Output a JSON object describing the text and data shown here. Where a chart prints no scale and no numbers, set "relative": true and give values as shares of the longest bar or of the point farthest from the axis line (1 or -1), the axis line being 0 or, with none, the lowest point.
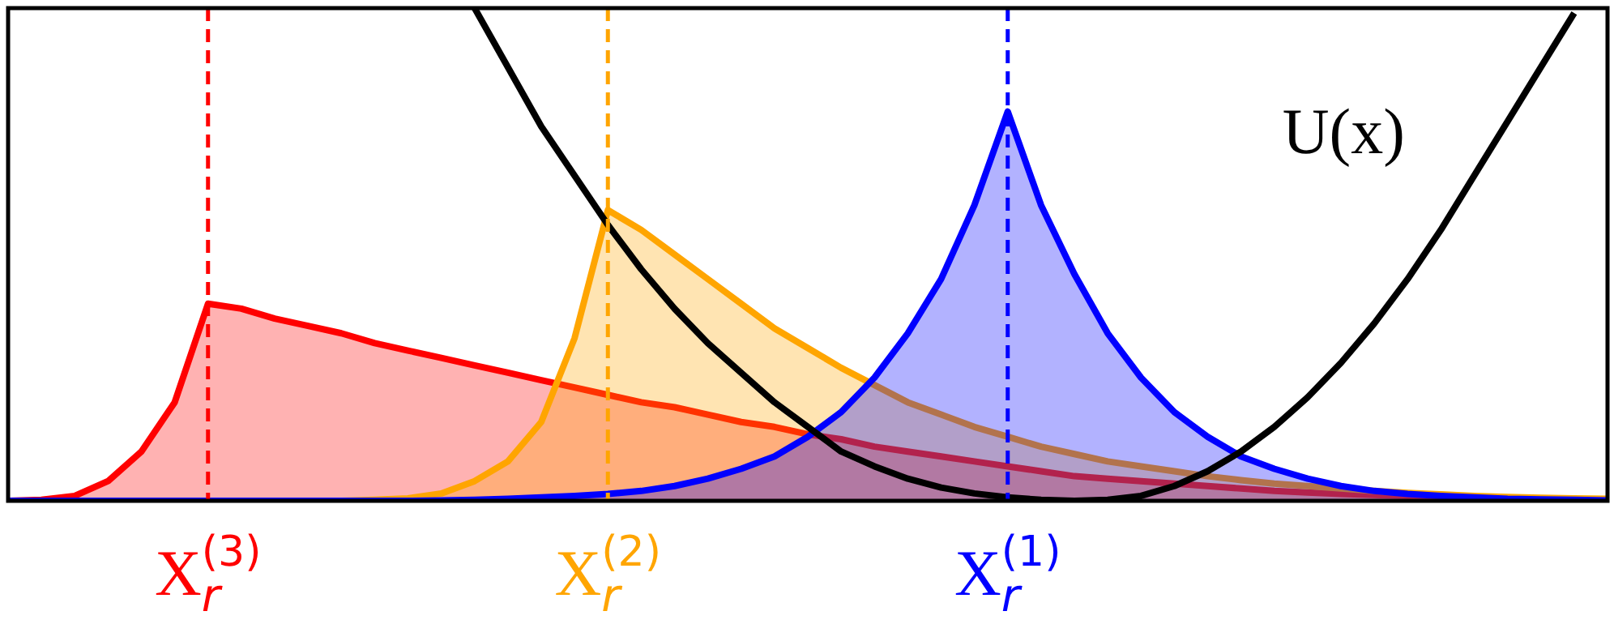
{
  "chart_data": {
    "type": "area",
    "relative": true,
    "legend": false,
    "marker": "none",
    "categories": [
      null,
      null,
      null,
      null,
      null,
      null,
      "X$_{r}$$^{(3)}$",
      null,
      null,
      null,
      null,
      null,
      null,
      null,
      null,
      null,
      null,
      null,
      "X$_{r}$$^{(2)}$",
      null,
      null,
      null,
      null,
      null,
      null,
      null,
      null,
      null,
      null,
      null,
      "X$_{r}$$^{(1)}$",
      null,
      null,
      null,
      null,
      null,
      null,
      null,
      null,
      null,
      null,
      null,
      null,
      null,
      null,
      null,
      null,
      null,
      null
    ],
    "series": [
      {
        "name": "U(x)",
        "type": "line",
        "color": "#000000",
        "values": [
          null,
          null,
          null,
          null,
          null,
          null,
          null,
          null,
          null,
          null,
          null,
          null,
          null,
          null,
          1.0,
          0.88,
          0.76,
          0.66,
          0.56,
          0.47,
          0.39,
          0.32,
          0.26,
          0.2,
          0.15,
          0.1,
          0.07,
          0.045,
          0.027,
          0.015,
          0.007,
          0.002,
          0,
          0.002,
          0.01,
          0.03,
          0.06,
          0.1,
          0.15,
          0.21,
          0.28,
          0.36,
          0.45,
          0.55,
          0.66,
          0.77,
          0.88,
          0.99,
          null
        ]
      },
      {
        "color": "#ff0000",
        "values": [
          0,
          0.002,
          0.01,
          0.04,
          0.1,
          0.2,
          0.4,
          0.39,
          0.37,
          0.355,
          0.34,
          0.32,
          0.305,
          0.29,
          0.275,
          0.26,
          0.245,
          0.23,
          0.215,
          0.2,
          0.19,
          0.175,
          0.16,
          0.15,
          0.135,
          0.125,
          0.11,
          0.1,
          0.09,
          0.08,
          0.07,
          0.06,
          0.05,
          0.045,
          0.04,
          0.035,
          0.03,
          0.025,
          0.02,
          0.017,
          0.014,
          0.012,
          0.01,
          0.008,
          0.006,
          0.005,
          0.004,
          0.003,
          0.002
        ]
      },
      {
        "color": "#ffa500",
        "values": [
          0,
          0,
          0,
          0,
          0,
          0,
          0,
          0,
          0,
          0,
          0,
          0.002,
          0.005,
          0.015,
          0.04,
          0.08,
          0.16,
          0.33,
          0.59,
          0.55,
          0.5,
          0.45,
          0.4,
          0.35,
          0.31,
          0.27,
          0.235,
          0.2,
          0.175,
          0.15,
          0.13,
          0.11,
          0.095,
          0.08,
          0.07,
          0.06,
          0.05,
          0.042,
          0.035,
          0.03,
          0.025,
          0.02,
          0.016,
          0.013,
          0.01,
          0.008,
          0.006,
          0.005,
          0.004
        ]
      },
      {
        "color": "#0000ff",
        "values": [
          0,
          0,
          0,
          0,
          0,
          0,
          0,
          0,
          0,
          0,
          0,
          0,
          0,
          0.001,
          0.002,
          0.004,
          0.007,
          0.01,
          0.014,
          0.02,
          0.03,
          0.045,
          0.065,
          0.09,
          0.13,
          0.18,
          0.25,
          0.34,
          0.45,
          0.6,
          0.79,
          0.6,
          0.46,
          0.34,
          0.25,
          0.18,
          0.13,
          0.09,
          0.065,
          0.045,
          0.03,
          0.02,
          0.014,
          0.01,
          0.007,
          0.004,
          0.003,
          0.002,
          0.001
        ]
      }
    ],
    "ref_lines": [
      {
        "axis": "x",
        "value": "X$_{r}$$^{(3)}$",
        "color": "#ff0000",
        "line_style": "dashed"
      },
      {
        "axis": "x",
        "value": "X$_{r}$$^{(2)}$",
        "color": "#ffa500",
        "line_style": "dashed"
      },
      {
        "axis": "x",
        "value": "X$_{r}$$^{(1)}$",
        "color": "#0000ff",
        "line_style": "dashed"
      }
    ]
  }
}
